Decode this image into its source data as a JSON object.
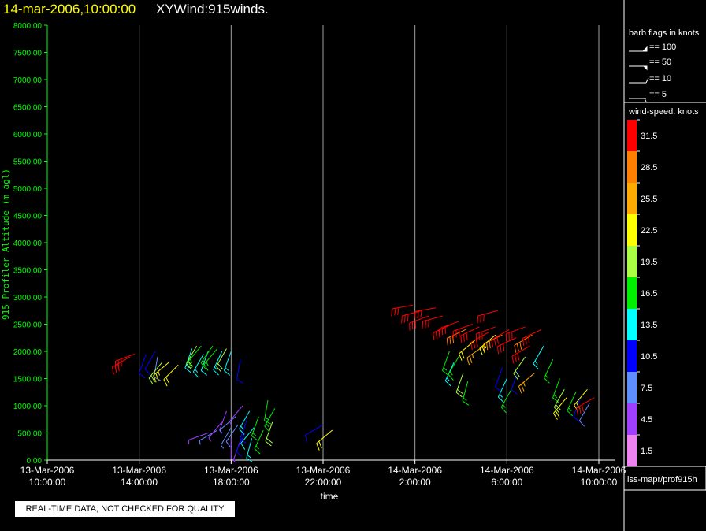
{
  "header": {
    "date": "14-mar-2006,10:00:00",
    "name": "XYWind:915winds."
  },
  "notice": "REAL-TIME DATA, NOT CHECKED FOR QUALITY",
  "footer": "iss-mapr/prof915h",
  "barb_legend": {
    "title": "barb flags in knots",
    "items": [
      "== 100",
      "== 50",
      "== 10",
      "== 5"
    ]
  },
  "colorbar": {
    "title": "wind-speed: knots",
    "levels": [
      {
        "label": "31.5",
        "color": "#ff0000"
      },
      {
        "label": "28.5",
        "color": "#ff7f00"
      },
      {
        "label": "25.5",
        "color": "#ffaa00"
      },
      {
        "label": "22.5",
        "color": "#ffff00"
      },
      {
        "label": "19.5",
        "color": "#aaff44"
      },
      {
        "label": "16.5",
        "color": "#00ee00"
      },
      {
        "label": "13.5",
        "color": "#00ffff"
      },
      {
        "label": "10.5",
        "color": "#0000ff"
      },
      {
        "label": "7.5",
        "color": "#5f8fff"
      },
      {
        "label": "4.5",
        "color": "#9f3fff"
      },
      {
        "label": "1.5",
        "color": "#ee82ee"
      }
    ]
  },
  "chart_data": {
    "type": "scatter",
    "xlabel": "time",
    "ylabel": "915 Profiler Altitude (m agl)",
    "ylim": [
      0,
      8000
    ],
    "xlim_hours": [
      0,
      24
    ],
    "x_ticks": [
      {
        "hour": 0,
        "line1": "13-Mar-2006",
        "line2": "10:00:00"
      },
      {
        "hour": 4,
        "line1": "13-Mar-2006",
        "line2": "14:00:00"
      },
      {
        "hour": 8,
        "line1": "13-Mar-2006",
        "line2": "18:00:00"
      },
      {
        "hour": 12,
        "line1": "13-Mar-2006",
        "line2": "22:00:00"
      },
      {
        "hour": 16,
        "line1": "14-Mar-2006",
        "line2": "2:00:00"
      },
      {
        "hour": 20,
        "line1": "14-Mar-2006",
        "line2": "6:00:00"
      },
      {
        "hour": 24,
        "line1": "14-Mar-2006",
        "line2": "10:00:00"
      }
    ],
    "y_ticks": [
      "0.00",
      "500.00",
      "1000.00",
      "1500.00",
      "2000.00",
      "2500.00",
      "3000.00",
      "3500.00",
      "4000.00",
      "4500.00",
      "5000.00",
      "5500.00",
      "6000.00",
      "6500.00",
      "7000.00",
      "7500.00",
      "8000.00"
    ],
    "grid": "vertical",
    "barbs": [
      {
        "t": 3.6,
        "alt": 1900,
        "spd": 31,
        "dir": 240
      },
      {
        "t": 3.8,
        "alt": 1950,
        "spd": 30,
        "dir": 250
      },
      {
        "t": 4.3,
        "alt": 1950,
        "spd": 9,
        "dir": 200
      },
      {
        "t": 4.7,
        "alt": 2000,
        "spd": 10,
        "dir": 210
      },
      {
        "t": 4.8,
        "alt": 1900,
        "spd": 8,
        "dir": 190
      },
      {
        "t": 5.0,
        "alt": 1800,
        "spd": 20,
        "dir": 220
      },
      {
        "t": 5.3,
        "alt": 1800,
        "spd": 23,
        "dir": 230
      },
      {
        "t": 5.7,
        "alt": 1750,
        "spd": 22,
        "dir": 225
      },
      {
        "t": 6.3,
        "alt": 2050,
        "spd": 14,
        "dir": 200
      },
      {
        "t": 6.5,
        "alt": 2100,
        "spd": 20,
        "dir": 210
      },
      {
        "t": 6.7,
        "alt": 2100,
        "spd": 17,
        "dir": 220
      },
      {
        "t": 6.8,
        "alt": 1950,
        "spd": 13,
        "dir": 210
      },
      {
        "t": 7.0,
        "alt": 2000,
        "spd": 12,
        "dir": 200
      },
      {
        "t": 7.2,
        "alt": 2100,
        "spd": 17,
        "dir": 215
      },
      {
        "t": 7.4,
        "alt": 2050,
        "spd": 16,
        "dir": 220
      },
      {
        "t": 7.6,
        "alt": 2000,
        "spd": 13,
        "dir": 205
      },
      {
        "t": 7.8,
        "alt": 2050,
        "spd": 19,
        "dir": 210
      },
      {
        "t": 8.0,
        "alt": 2000,
        "spd": 14,
        "dir": 200
      },
      {
        "t": 8.4,
        "alt": 1850,
        "spd": 10,
        "dir": 190
      },
      {
        "t": 7.0,
        "alt": 500,
        "spd": 5,
        "dir": 250
      },
      {
        "t": 7.4,
        "alt": 550,
        "spd": 6,
        "dir": 240
      },
      {
        "t": 7.6,
        "alt": 700,
        "spd": 4,
        "dir": 220
      },
      {
        "t": 7.8,
        "alt": 900,
        "spd": 5,
        "dir": 200
      },
      {
        "t": 8.0,
        "alt": 600,
        "spd": 7,
        "dir": 210
      },
      {
        "t": 8.0,
        "alt": 400,
        "spd": 3,
        "dir": 180
      },
      {
        "t": 8.2,
        "alt": 800,
        "spd": 6,
        "dir": 230
      },
      {
        "t": 8.3,
        "alt": 650,
        "spd": 8,
        "dir": 215
      },
      {
        "t": 8.4,
        "alt": 350,
        "spd": 5,
        "dir": 200
      },
      {
        "t": 8.5,
        "alt": 1000,
        "spd": 4,
        "dir": 220
      },
      {
        "t": 8.6,
        "alt": 500,
        "spd": 9,
        "dir": 205
      },
      {
        "t": 8.7,
        "alt": 750,
        "spd": 11,
        "dir": 200
      },
      {
        "t": 8.8,
        "alt": 900,
        "spd": 13,
        "dir": 210
      },
      {
        "t": 8.9,
        "alt": 400,
        "spd": 14,
        "dir": 195
      },
      {
        "t": 9.0,
        "alt": 600,
        "spd": 12,
        "dir": 220
      },
      {
        "t": 9.2,
        "alt": 800,
        "spd": 15,
        "dir": 200
      },
      {
        "t": 9.4,
        "alt": 550,
        "spd": 17,
        "dir": 205
      },
      {
        "t": 9.6,
        "alt": 1100,
        "spd": 16,
        "dir": 190
      },
      {
        "t": 9.8,
        "alt": 700,
        "spd": 18,
        "dir": 200
      },
      {
        "t": 9.9,
        "alt": 950,
        "spd": 17,
        "dir": 210
      },
      {
        "t": 12.0,
        "alt": 650,
        "spd": 10,
        "dir": 240
      },
      {
        "t": 12.4,
        "alt": 550,
        "spd": 22,
        "dir": 230
      },
      {
        "t": 15.9,
        "alt": 2850,
        "spd": 31,
        "dir": 260
      },
      {
        "t": 16.3,
        "alt": 2750,
        "spd": 31,
        "dir": 255
      },
      {
        "t": 16.6,
        "alt": 2650,
        "spd": 30,
        "dir": 250
      },
      {
        "t": 16.9,
        "alt": 2800,
        "spd": 31,
        "dir": 260
      },
      {
        "t": 17.2,
        "alt": 2650,
        "spd": 30,
        "dir": 255
      },
      {
        "t": 17.6,
        "alt": 2500,
        "spd": 30,
        "dir": 245
      },
      {
        "t": 17.9,
        "alt": 2550,
        "spd": 31,
        "dir": 250
      },
      {
        "t": 18.2,
        "alt": 2400,
        "spd": 29,
        "dir": 245
      },
      {
        "t": 18.5,
        "alt": 2500,
        "spd": 30,
        "dir": 250
      },
      {
        "t": 18.8,
        "alt": 2450,
        "spd": 31,
        "dir": 245
      },
      {
        "t": 19.2,
        "alt": 2350,
        "spd": 30,
        "dir": 240
      },
      {
        "t": 19.5,
        "alt": 2450,
        "spd": 31,
        "dir": 250
      },
      {
        "t": 19.8,
        "alt": 2300,
        "spd": 29,
        "dir": 245
      },
      {
        "t": 20.1,
        "alt": 2400,
        "spd": 30,
        "dir": 240
      },
      {
        "t": 20.4,
        "alt": 2250,
        "spd": 31,
        "dir": 245
      },
      {
        "t": 20.8,
        "alt": 2450,
        "spd": 30,
        "dir": 250
      },
      {
        "t": 21.1,
        "alt": 2300,
        "spd": 29,
        "dir": 240
      },
      {
        "t": 21.5,
        "alt": 2400,
        "spd": 31,
        "dir": 245
      },
      {
        "t": 21.0,
        "alt": 2100,
        "spd": 30,
        "dir": 240
      },
      {
        "t": 19.6,
        "alt": 2750,
        "spd": 31,
        "dir": 255
      },
      {
        "t": 17.5,
        "alt": 2000,
        "spd": 16,
        "dir": 200
      },
      {
        "t": 17.7,
        "alt": 1800,
        "spd": 14,
        "dir": 205
      },
      {
        "t": 17.9,
        "alt": 1900,
        "spd": 17,
        "dir": 210
      },
      {
        "t": 18.1,
        "alt": 1600,
        "spd": 18,
        "dir": 200
      },
      {
        "t": 18.3,
        "alt": 1450,
        "spd": 16,
        "dir": 195
      },
      {
        "t": 18.6,
        "alt": 2200,
        "spd": 22,
        "dir": 230
      },
      {
        "t": 19.0,
        "alt": 2100,
        "spd": 24,
        "dir": 235
      },
      {
        "t": 19.5,
        "alt": 2300,
        "spd": 23,
        "dir": 230
      },
      {
        "t": 19.8,
        "alt": 1700,
        "spd": 11,
        "dir": 200
      },
      {
        "t": 20.0,
        "alt": 1500,
        "spd": 14,
        "dir": 205
      },
      {
        "t": 20.2,
        "alt": 1300,
        "spd": 16,
        "dir": 210
      },
      {
        "t": 20.5,
        "alt": 1650,
        "spd": 10,
        "dir": 200
      },
      {
        "t": 20.8,
        "alt": 1900,
        "spd": 20,
        "dir": 215
      },
      {
        "t": 21.2,
        "alt": 1600,
        "spd": 24,
        "dir": 230
      },
      {
        "t": 21.6,
        "alt": 2100,
        "spd": 13,
        "dir": 210
      },
      {
        "t": 22.0,
        "alt": 1850,
        "spd": 16,
        "dir": 205
      },
      {
        "t": 22.3,
        "alt": 1500,
        "spd": 17,
        "dir": 200
      },
      {
        "t": 22.5,
        "alt": 1300,
        "spd": 20,
        "dir": 210
      },
      {
        "t": 22.6,
        "alt": 1150,
        "spd": 22,
        "dir": 220
      },
      {
        "t": 23.0,
        "alt": 1250,
        "spd": 16,
        "dir": 205
      },
      {
        "t": 23.2,
        "alt": 1150,
        "spd": 10,
        "dir": 200
      },
      {
        "t": 23.5,
        "alt": 1300,
        "spd": 22,
        "dir": 220
      },
      {
        "t": 23.8,
        "alt": 1150,
        "spd": 31,
        "dir": 240
      },
      {
        "t": 23.6,
        "alt": 1050,
        "spd": 8,
        "dir": 210
      }
    ]
  }
}
